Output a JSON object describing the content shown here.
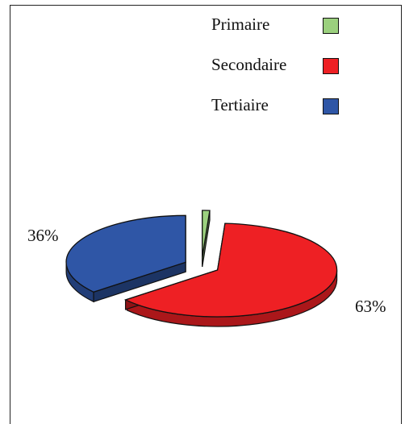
{
  "chart_data": {
    "type": "pie",
    "title": "",
    "slices": [
      {
        "label": "Primaire",
        "value": 1,
        "color": "#9bd07e"
      },
      {
        "label": "Secondaire",
        "value": 63,
        "color": "#ee2024"
      },
      {
        "label": "Tertiaire",
        "value": 36,
        "color": "#2f56a6"
      }
    ],
    "data_labels": [
      "36%",
      "63%"
    ],
    "legend": {
      "position": "top-right",
      "entries": [
        "Primaire",
        "Secondaire",
        "Tertiaire"
      ]
    },
    "style": "3d-exploded"
  }
}
